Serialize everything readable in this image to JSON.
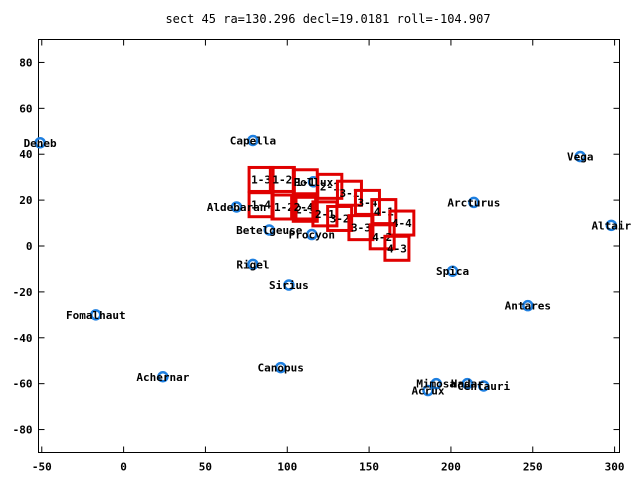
{
  "chart_data": {
    "type": "scatter",
    "title": "sect 45 ra=130.296 decl=19.0181 roll=-104.907",
    "xlabel": "",
    "ylabel": "",
    "xlim": [
      -52,
      303
    ],
    "ylim": [
      -90,
      90
    ],
    "xticks": [
      -50,
      0,
      50,
      100,
      150,
      200,
      250,
      300
    ],
    "yticks": [
      -80,
      -60,
      -40,
      -20,
      0,
      20,
      40,
      60,
      80
    ],
    "grid": false,
    "marker_color": "#1e7fe0",
    "box_color": "#e00000",
    "stars": [
      {
        "name": "Deneb",
        "x": -51,
        "y": 45
      },
      {
        "name": "Capella",
        "x": 79,
        "y": 46
      },
      {
        "name": "Pollux",
        "x": 116,
        "y": 28
      },
      {
        "name": "Aldebaran",
        "x": 69,
        "y": 17
      },
      {
        "name": "Betelgeuse",
        "x": 89,
        "y": 7
      },
      {
        "name": "Procyon",
        "x": 115,
        "y": 5
      },
      {
        "name": "Rigel",
        "x": 79,
        "y": -8
      },
      {
        "name": "Sirius",
        "x": 101,
        "y": -17
      },
      {
        "name": "Vega",
        "x": 279,
        "y": 39
      },
      {
        "name": "Arcturus",
        "x": 214,
        "y": 19
      },
      {
        "name": "Altair",
        "x": 298,
        "y": 9
      },
      {
        "name": "Spica",
        "x": 201,
        "y": -11
      },
      {
        "name": "Antares",
        "x": 247,
        "y": -26
      },
      {
        "name": "Fomalhaut",
        "x": -17,
        "y": -30
      },
      {
        "name": "Achernar",
        "x": 24,
        "y": -57
      },
      {
        "name": "Canopus",
        "x": 96,
        "y": -53
      },
      {
        "name": "Mimosa",
        "x": 191,
        "y": -60
      },
      {
        "name": "Hadar",
        "x": 210,
        "y": -60
      },
      {
        "name": "Acrux",
        "x": 186,
        "y": -63
      },
      {
        "name": "Centauri",
        "x": 220,
        "y": -61
      }
    ],
    "sectors": [
      {
        "label": "1-3",
        "x": 84,
        "y": 29
      },
      {
        "label": "1-2",
        "x": 97,
        "y": 29
      },
      {
        "label": "1-1",
        "x": 111,
        "y": 28
      },
      {
        "label": "1-4",
        "x": 84,
        "y": 18
      },
      {
        "label": "2-1",
        "x": 126,
        "y": 26
      },
      {
        "label": "2-3",
        "x": 111,
        "y": 16
      },
      {
        "label": "1-2",
        "x": 98,
        "y": 17
      },
      {
        "label": "2-4",
        "x": 110,
        "y": 17
      },
      {
        "label": "3-1",
        "x": 138,
        "y": 23
      },
      {
        "label": "2-1",
        "x": 123,
        "y": 14
      },
      {
        "label": "3-2",
        "x": 132,
        "y": 12
      },
      {
        "label": "3-4",
        "x": 149,
        "y": 19
      },
      {
        "label": "3-3",
        "x": 145,
        "y": 8
      },
      {
        "label": "4-1",
        "x": 159,
        "y": 15
      },
      {
        "label": "4-4",
        "x": 170,
        "y": 10
      },
      {
        "label": "4-2",
        "x": 158,
        "y": 4
      },
      {
        "label": "4-3",
        "x": 167,
        "y": -1
      }
    ]
  }
}
